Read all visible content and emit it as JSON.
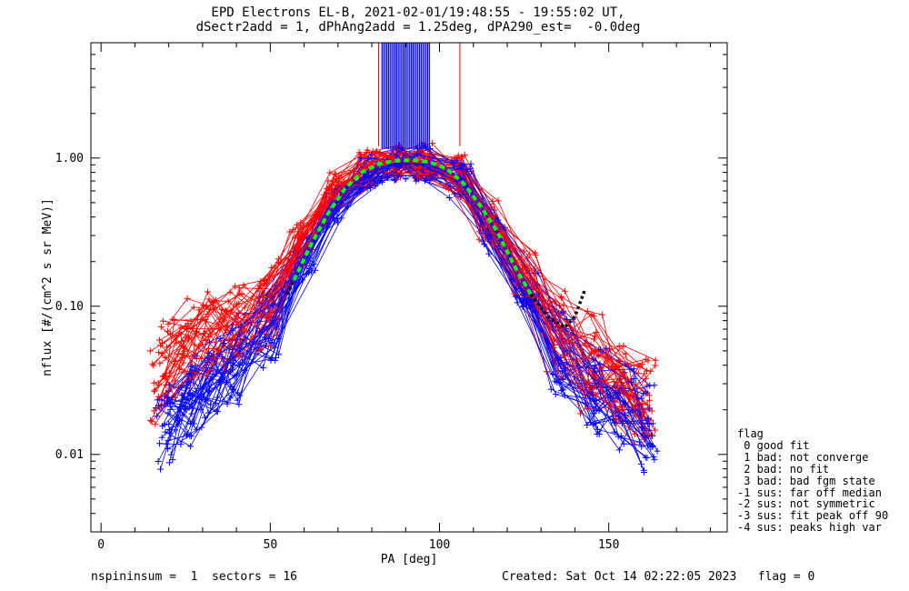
{
  "title_lines": [
    "EPD Electrons EL-B, 2021-02-01/19:48:55 - 19:55:02 UT,",
    "dSectr2add = 1, dPhAng2add = 1.25deg, dPA290_est=  -0.0deg"
  ],
  "footer": {
    "left": "nspininsum =  1  sectors = 16",
    "right": "Created: Sat Oct 14 02:22:05 2023   flag = 0"
  },
  "legend": {
    "title": "flag",
    "items": [
      " 0 good fit",
      " 1 bad: not converge",
      " 2 bad: no fit",
      " 3 bad: bad fgm state",
      "-1 sus: far off median",
      "-2 sus: not symmetric",
      "-3 sus: fit peak off 90",
      "-4 sus: peaks high var"
    ]
  },
  "colors": {
    "red_series": "#ff0000",
    "blue_series": "#0000ff",
    "fit_curve": "#00ff00",
    "extrapolated_fit": "#000000",
    "axes": "#000000"
  },
  "chart_data": {
    "type": "line",
    "xlabel": "PA [deg]",
    "ylabel": "nflux [#/(cm^2 s sr MeV)]",
    "xlim": [
      -3,
      185
    ],
    "ylim": [
      0.003,
      6.0
    ],
    "yscale": "log",
    "xticks": [
      0,
      50,
      100,
      150
    ],
    "yticks": [
      0.01,
      0.1,
      1.0
    ],
    "ytick_labels": [
      "0.01",
      "0.10",
      "1.00"
    ],
    "grid": false,
    "legend_placement": "right",
    "series": [
      {
        "color": "red",
        "values_x": [
          17,
          24,
          30,
          38,
          48,
          58,
          68,
          78,
          86,
          94,
          104,
          114,
          124,
          134,
          144,
          152,
          160
        ],
        "values_y": [
          0.03,
          0.045,
          0.055,
          0.06,
          0.09,
          0.25,
          0.55,
          0.85,
          0.95,
          0.93,
          0.75,
          0.35,
          0.16,
          0.06,
          0.035,
          0.028,
          0.022
        ]
      },
      {
        "color": "blue",
        "values_x": [
          18,
          25,
          32,
          39,
          49,
          59,
          69,
          79,
          87,
          95,
          105,
          115,
          125,
          135,
          145,
          153,
          161
        ],
        "values_y": [
          0.013,
          0.02,
          0.028,
          0.04,
          0.07,
          0.2,
          0.48,
          0.8,
          0.92,
          0.9,
          0.7,
          0.3,
          0.12,
          0.045,
          0.025,
          0.018,
          0.013
        ]
      },
      {
        "color": "red",
        "values_x": [
          19,
          26,
          33,
          40,
          50,
          60,
          70,
          80,
          88,
          96,
          106,
          116,
          126,
          136,
          146,
          154,
          162
        ],
        "values_y": [
          0.045,
          0.06,
          0.07,
          0.075,
          0.12,
          0.3,
          0.6,
          0.9,
          0.97,
          0.95,
          0.8,
          0.4,
          0.18,
          0.07,
          0.05,
          0.035,
          0.025
        ]
      },
      {
        "color": "blue",
        "values_x": [
          20,
          27,
          34,
          41,
          51,
          61,
          71,
          81,
          89,
          97,
          107,
          117,
          127,
          137,
          147,
          155,
          162
        ],
        "values_y": [
          0.016,
          0.025,
          0.035,
          0.05,
          0.08,
          0.22,
          0.5,
          0.82,
          0.93,
          0.91,
          0.72,
          0.32,
          0.13,
          0.05,
          0.03,
          0.022,
          0.016
        ]
      }
    ],
    "fit_curve": {
      "x": [
        57,
        62,
        67,
        72,
        77,
        82,
        87,
        92,
        97,
        102,
        107,
        112,
        117,
        122,
        127
      ],
      "y": [
        0.15,
        0.26,
        0.42,
        0.62,
        0.8,
        0.91,
        0.96,
        0.97,
        0.94,
        0.85,
        0.68,
        0.48,
        0.32,
        0.19,
        0.12
      ]
    },
    "fit_extrapolated": {
      "x": [
        55,
        57,
        127,
        132,
        137,
        140,
        143
      ],
      "y": [
        0.12,
        0.15,
        0.12,
        0.085,
        0.072,
        0.085,
        0.13
      ]
    },
    "spikes": {
      "color": "blue",
      "x_range": [
        83,
        97
      ],
      "top_y": 6.0,
      "bottom_y": 1.15,
      "count": 30
    },
    "red_spikes_x": [
      82,
      106
    ]
  }
}
